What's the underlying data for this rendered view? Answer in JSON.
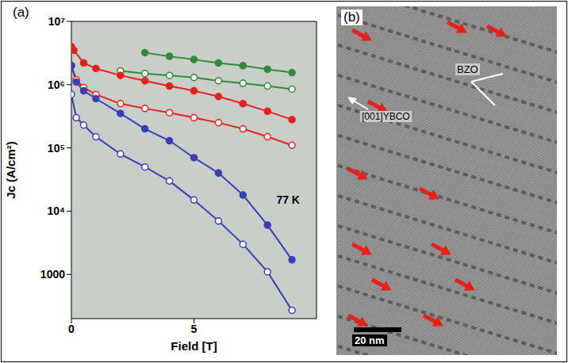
{
  "chart_data": {
    "type": "line",
    "panel": "(a)",
    "xlabel": "Field [T]",
    "ylabel": "Jc (A/cm²)",
    "log": "y",
    "grid": true,
    "xlim": [
      0,
      10
    ],
    "xticks": [
      0,
      5
    ],
    "ylim": [
      200,
      10000000
    ],
    "yticks": [
      1000,
      {
        "value": 10000,
        "label": "10⁴"
      },
      {
        "value": 100000,
        "label": "10⁵"
      },
      {
        "value": 1000000,
        "label": "10⁶"
      },
      {
        "value": 10000000,
        "label": "10⁷"
      }
    ],
    "annotations": [
      {
        "text": "77 K",
        "x": 8.2,
        "y": 15000
      }
    ],
    "series": [
      {
        "color": "#2e8b3a",
        "marker": "filled_circle",
        "x": [
          3,
          4,
          5,
          6,
          7,
          8,
          9
        ],
        "values": [
          3200000,
          2800000,
          2500000,
          2200000,
          2000000,
          1750000,
          1550000
        ]
      },
      {
        "color": "#2e8b3a",
        "marker": "open_circle",
        "x": [
          2,
          3,
          4,
          5,
          6,
          7,
          8,
          9
        ],
        "values": [
          1650000,
          1500000,
          1400000,
          1300000,
          1150000,
          1050000,
          950000,
          850000
        ]
      },
      {
        "color": "#e8201c",
        "marker": "filled_circle",
        "x": [
          0,
          0.1,
          0.5,
          1,
          2,
          3,
          4,
          5,
          6,
          7,
          8,
          9
        ],
        "values": [
          4000000,
          3500000,
          2200000,
          1800000,
          1400000,
          1150000,
          950000,
          800000,
          650000,
          500000,
          380000,
          280000
        ]
      },
      {
        "color": "#e8201c",
        "marker": "open_circle",
        "x": [
          0,
          0.2,
          0.5,
          1,
          2,
          3,
          4,
          5,
          6,
          7,
          8,
          9
        ],
        "values": [
          2000000,
          1200000,
          900000,
          700000,
          500000,
          420000,
          360000,
          300000,
          250000,
          200000,
          150000,
          110000
        ]
      },
      {
        "color": "#3a3fb5",
        "marker": "filled_circle",
        "x": [
          0,
          0.2,
          0.5,
          1,
          2,
          3,
          4,
          5,
          6,
          7,
          8,
          9
        ],
        "values": [
          2000000,
          1100000,
          800000,
          600000,
          350000,
          200000,
          130000,
          70000,
          40000,
          18000,
          6000,
          1700
        ]
      },
      {
        "color": "#3a3fb5",
        "marker": "open_circle",
        "x": [
          0,
          0.2,
          0.5,
          1,
          2,
          3,
          4,
          5,
          6,
          7,
          8,
          9
        ],
        "values": [
          700000,
          300000,
          230000,
          150000,
          80000,
          50000,
          30000,
          15000,
          7000,
          3000,
          1100,
          270
        ]
      }
    ]
  },
  "image_panel": {
    "panel": "(b)",
    "labels": [
      "BZO",
      "[001]YBCO"
    ],
    "scale_bar": "20 nm"
  }
}
